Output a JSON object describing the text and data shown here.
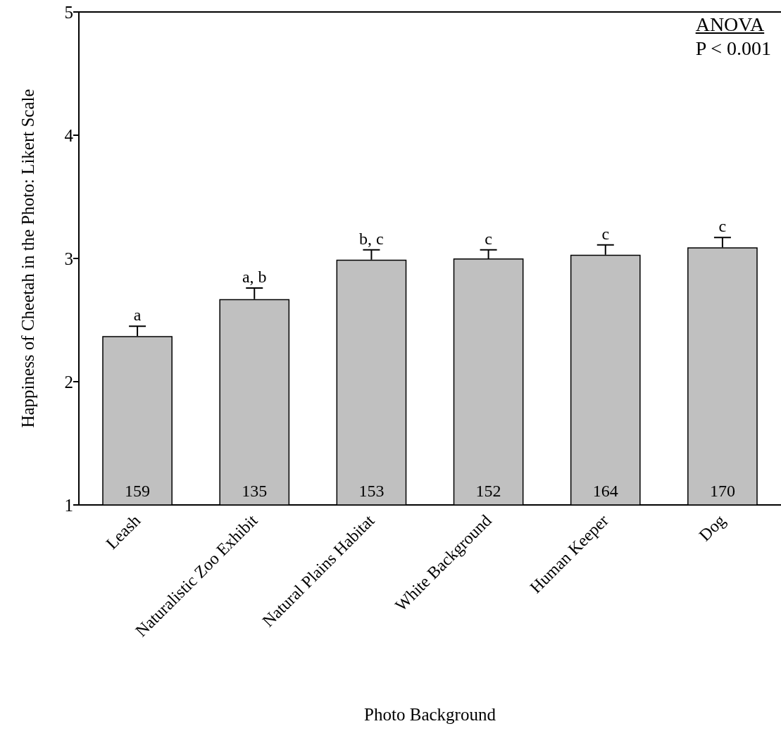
{
  "chart_data": {
    "type": "bar",
    "xlabel": "Photo Background",
    "ylabel": "Happiness of Cheetah in the Photo: Likert Scale",
    "categories": [
      "Leash",
      "Naturalistic Zoo Exhibit",
      "Natural Plains Habitat",
      "White Background",
      "Human Keeper",
      "Dog"
    ],
    "values": [
      2.37,
      2.67,
      2.99,
      3.0,
      3.03,
      3.09
    ],
    "errors": [
      [
        2.37,
        2.45
      ],
      [
        2.67,
        2.76
      ],
      [
        2.99,
        3.07
      ],
      [
        3.0,
        3.07
      ],
      [
        3.03,
        3.11
      ],
      [
        3.09,
        3.17
      ]
    ],
    "color": "#c0c0c0",
    "ylim": [
      1,
      5
    ],
    "yticks": [
      1,
      2,
      3,
      4,
      5
    ],
    "grid": false,
    "annotations": [
      {
        "text": "a",
        "x": "Leash",
        "y": 2.45
      },
      {
        "text": "a, b",
        "x": "Naturalistic Zoo Exhibit",
        "y": 2.76
      },
      {
        "text": "b, c",
        "x": "Natural Plains Habitat",
        "y": 3.07
      },
      {
        "text": "c",
        "x": "White Background",
        "y": 3.07
      },
      {
        "text": "c",
        "x": "Human Keeper",
        "y": 3.11
      },
      {
        "text": "c",
        "x": "Dog",
        "y": 3.17
      },
      "159",
      "135",
      "153",
      "152",
      "164",
      "170",
      "ANOVA",
      "P < 0.001"
    ]
  }
}
